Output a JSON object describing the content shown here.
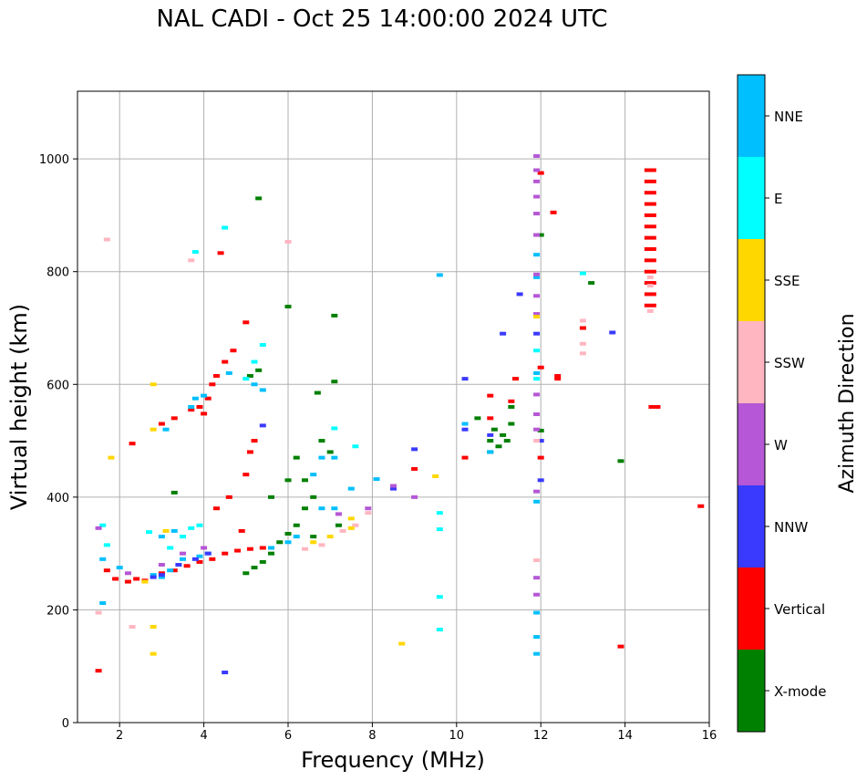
{
  "chart_data": {
    "type": "scatter",
    "title": "NAL CADI - Oct 25 14:00:00 2024 UTC",
    "xlabel": "Frequency (MHz)",
    "ylabel": "Virtual height (km)",
    "xlim": [
      1,
      16
    ],
    "ylim": [
      0,
      1120
    ],
    "xticks": [
      2,
      4,
      6,
      8,
      10,
      12,
      14,
      16
    ],
    "yticks": [
      0,
      200,
      400,
      600,
      800,
      1000
    ],
    "grid": true,
    "colorbar": {
      "label": "Azimuth Direction",
      "categories": [
        {
          "name": "X-mode",
          "color": "#008000"
        },
        {
          "name": "Vertical",
          "color": "#ff0000"
        },
        {
          "name": "NNW",
          "color": "#3a3aff"
        },
        {
          "name": "W",
          "color": "#b557d6"
        },
        {
          "name": "SSW",
          "color": "#ffb6c1"
        },
        {
          "name": "SSE",
          "color": "#ffd700"
        },
        {
          "name": "E",
          "color": "#00ffff"
        },
        {
          "name": "NNE",
          "color": "#00bfff"
        }
      ]
    },
    "series": [
      {
        "name": "Vertical",
        "points": [
          [
            2.2,
            250
          ],
          [
            2.4,
            255
          ],
          [
            2.6,
            252
          ],
          [
            3.0,
            265
          ],
          [
            3.3,
            270
          ],
          [
            3.6,
            278
          ],
          [
            3.9,
            285
          ],
          [
            4.2,
            290
          ],
          [
            4.5,
            300
          ],
          [
            4.8,
            305
          ],
          [
            5.1,
            308
          ],
          [
            5.4,
            310
          ],
          [
            2.3,
            495
          ],
          [
            3.0,
            530
          ],
          [
            3.3,
            540
          ],
          [
            3.7,
            555
          ],
          [
            3.9,
            560
          ],
          [
            4.1,
            575
          ],
          [
            4.2,
            600
          ],
          [
            4.3,
            615
          ],
          [
            4.5,
            640
          ],
          [
            4.7,
            660
          ],
          [
            5.0,
            710
          ],
          [
            4.4,
            833
          ],
          [
            4.0,
            548
          ],
          [
            4.3,
            380
          ],
          [
            4.6,
            400
          ],
          [
            5.0,
            440
          ],
          [
            5.1,
            480
          ],
          [
            5.2,
            500
          ],
          [
            4.9,
            340
          ],
          [
            9.0,
            450
          ],
          [
            10.2,
            470
          ],
          [
            10.8,
            540
          ],
          [
            10.8,
            580
          ],
          [
            11.3,
            570
          ],
          [
            11.4,
            610
          ],
          [
            12.0,
            975
          ],
          [
            12.3,
            905
          ],
          [
            12.4,
            615
          ],
          [
            12.4,
            610
          ],
          [
            12.0,
            470
          ],
          [
            12.0,
            630
          ],
          [
            13.0,
            700
          ],
          [
            14.6,
            980
          ],
          [
            14.6,
            960
          ],
          [
            14.6,
            940
          ],
          [
            14.6,
            920
          ],
          [
            14.6,
            900
          ],
          [
            14.6,
            880
          ],
          [
            14.6,
            860
          ],
          [
            14.6,
            840
          ],
          [
            14.6,
            820
          ],
          [
            14.6,
            800
          ],
          [
            14.6,
            780
          ],
          [
            14.6,
            760
          ],
          [
            14.6,
            740
          ],
          [
            14.7,
            560
          ],
          [
            13.9,
            135
          ],
          [
            15.8,
            384
          ],
          [
            1.5,
            92
          ],
          [
            1.7,
            270
          ],
          [
            1.9,
            255
          ]
        ]
      },
      {
        "name": "X-mode",
        "points": [
          [
            3.3,
            408
          ],
          [
            5.0,
            265
          ],
          [
            5.2,
            275
          ],
          [
            5.4,
            285
          ],
          [
            5.6,
            300
          ],
          [
            5.8,
            320
          ],
          [
            6.0,
            335
          ],
          [
            6.2,
            350
          ],
          [
            6.4,
            380
          ],
          [
            6.6,
            400
          ],
          [
            5.3,
            930
          ],
          [
            6.0,
            738
          ],
          [
            7.1,
            722
          ],
          [
            5.1,
            615
          ],
          [
            5.3,
            625
          ],
          [
            5.6,
            400
          ],
          [
            6.0,
            430
          ],
          [
            6.2,
            470
          ],
          [
            6.4,
            430
          ],
          [
            6.7,
            585
          ],
          [
            7.1,
            605
          ],
          [
            6.8,
            500
          ],
          [
            7.0,
            480
          ],
          [
            10.5,
            540
          ],
          [
            10.8,
            480
          ],
          [
            10.8,
            500
          ],
          [
            10.9,
            520
          ],
          [
            11.0,
            490
          ],
          [
            11.1,
            510
          ],
          [
            11.2,
            500
          ],
          [
            11.3,
            530
          ],
          [
            11.3,
            560
          ],
          [
            12.0,
            865
          ],
          [
            12.0,
            518
          ],
          [
            13.2,
            780
          ],
          [
            13.9,
            464
          ],
          [
            6.6,
            330
          ],
          [
            7.2,
            350
          ]
        ]
      },
      {
        "name": "NNE",
        "points": [
          [
            1.6,
            290
          ],
          [
            2.0,
            275
          ],
          [
            2.8,
            262
          ],
          [
            3.0,
            258
          ],
          [
            3.2,
            270
          ],
          [
            3.5,
            290
          ],
          [
            3.9,
            295
          ],
          [
            4.1,
            300
          ],
          [
            3.7,
            560
          ],
          [
            3.8,
            575
          ],
          [
            4.0,
            580
          ],
          [
            5.2,
            600
          ],
          [
            5.6,
            310
          ],
          [
            6.0,
            320
          ],
          [
            6.2,
            330
          ],
          [
            6.8,
            380
          ],
          [
            6.8,
            470
          ],
          [
            6.6,
            440
          ],
          [
            7.1,
            380
          ],
          [
            7.1,
            470
          ],
          [
            7.5,
            415
          ],
          [
            8.1,
            432
          ],
          [
            9.6,
            794
          ],
          [
            10.2,
            530
          ],
          [
            10.8,
            480
          ],
          [
            11.9,
            830
          ],
          [
            11.9,
            790
          ],
          [
            11.9,
            620
          ],
          [
            11.9,
            392
          ],
          [
            11.9,
            195
          ],
          [
            11.9,
            152
          ],
          [
            11.9,
            122
          ],
          [
            5.4,
            590
          ],
          [
            4.6,
            620
          ],
          [
            3.1,
            520
          ],
          [
            3.3,
            340
          ],
          [
            1.6,
            212
          ],
          [
            3.0,
            330
          ]
        ]
      },
      {
        "name": "E",
        "points": [
          [
            1.6,
            350
          ],
          [
            1.7,
            315
          ],
          [
            2.7,
            338
          ],
          [
            3.2,
            310
          ],
          [
            3.5,
            330
          ],
          [
            3.7,
            345
          ],
          [
            3.9,
            350
          ],
          [
            3.8,
            835
          ],
          [
            4.5,
            878
          ],
          [
            5.0,
            610
          ],
          [
            5.4,
            670
          ],
          [
            5.2,
            640
          ],
          [
            7.1,
            522
          ],
          [
            7.6,
            490
          ],
          [
            9.6,
            372
          ],
          [
            9.6,
            343
          ],
          [
            9.6,
            223
          ],
          [
            9.6,
            165
          ],
          [
            11.9,
            660
          ],
          [
            11.9,
            610
          ],
          [
            13.0,
            797
          ]
        ]
      },
      {
        "name": "NNW",
        "points": [
          [
            2.8,
            258
          ],
          [
            3.0,
            262
          ],
          [
            3.4,
            280
          ],
          [
            3.8,
            290
          ],
          [
            4.1,
            300
          ],
          [
            4.5,
            89
          ],
          [
            5.4,
            527
          ],
          [
            8.5,
            415
          ],
          [
            9.0,
            485
          ],
          [
            10.2,
            610
          ],
          [
            10.2,
            520
          ],
          [
            10.8,
            510
          ],
          [
            11.5,
            760
          ],
          [
            11.9,
            690
          ],
          [
            12.0,
            500
          ],
          [
            13.7,
            692
          ],
          [
            12.0,
            430
          ],
          [
            11.1,
            690
          ]
        ]
      },
      {
        "name": "W",
        "points": [
          [
            1.5,
            345
          ],
          [
            2.2,
            265
          ],
          [
            3.0,
            280
          ],
          [
            3.5,
            300
          ],
          [
            4.0,
            310
          ],
          [
            7.2,
            370
          ],
          [
            7.9,
            380
          ],
          [
            8.5,
            420
          ],
          [
            9.0,
            400
          ],
          [
            11.9,
            1005
          ],
          [
            11.9,
            980
          ],
          [
            11.9,
            960
          ],
          [
            11.9,
            933
          ],
          [
            11.9,
            903
          ],
          [
            11.9,
            865
          ],
          [
            11.9,
            795
          ],
          [
            11.9,
            757
          ],
          [
            11.9,
            725
          ],
          [
            11.9,
            582
          ],
          [
            11.9,
            547
          ],
          [
            11.9,
            520
          ],
          [
            11.9,
            410
          ],
          [
            11.9,
            257
          ],
          [
            11.9,
            227
          ]
        ]
      },
      {
        "name": "SSW",
        "points": [
          [
            1.5,
            195
          ],
          [
            1.7,
            857
          ],
          [
            2.3,
            170
          ],
          [
            3.7,
            820
          ],
          [
            6.4,
            308
          ],
          [
            6.8,
            315
          ],
          [
            7.3,
            340
          ],
          [
            7.6,
            350
          ],
          [
            7.9,
            372
          ],
          [
            11.9,
            500
          ],
          [
            11.9,
            288
          ],
          [
            13.0,
            713
          ],
          [
            13.0,
            672
          ],
          [
            13.0,
            655
          ],
          [
            14.6,
            730
          ],
          [
            14.6,
            775
          ],
          [
            14.6,
            790
          ],
          [
            6.0,
            853
          ]
        ]
      },
      {
        "name": "SSE",
        "points": [
          [
            1.8,
            470
          ],
          [
            2.6,
            250
          ],
          [
            2.8,
            600
          ],
          [
            2.8,
            520
          ],
          [
            2.8,
            170
          ],
          [
            2.8,
            122
          ],
          [
            3.1,
            340
          ],
          [
            6.6,
            320
          ],
          [
            7.0,
            330
          ],
          [
            7.5,
            345
          ],
          [
            7.5,
            362
          ],
          [
            8.7,
            140
          ],
          [
            9.5,
            437
          ],
          [
            11.9,
            720
          ]
        ]
      }
    ]
  }
}
